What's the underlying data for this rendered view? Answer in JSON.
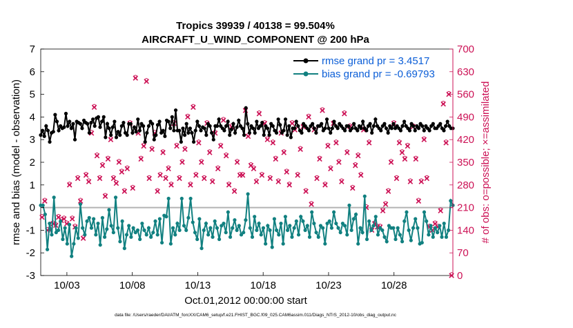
{
  "chart_data": {
    "type": "line",
    "title": "Tropics 39939 / 40138 = 99.504%",
    "subtitle": "AIRCRAFT_U_WIND_COMPONENT @ 200 hPa",
    "xlabel": "Oct.01,2012 00:00:00 start",
    "ylabel_left": "rmse and bias (model - observation)",
    "ylabel_right": "# of obs: o=possible; ×=assimilated",
    "ylim_left": [
      -3,
      7
    ],
    "ylim_right": [
      0,
      700
    ],
    "yticks_left": [
      "-3",
      "-2",
      "-1",
      "0",
      "1",
      "2",
      "3",
      "4",
      "5",
      "6",
      "7"
    ],
    "yticks_right": [
      "0",
      "70",
      "140",
      "210",
      "280",
      "350",
      "420",
      "490",
      "560",
      "630",
      "700"
    ],
    "x_range_days": [
      1,
      32.5
    ],
    "xticks": [
      {
        "day": 3,
        "label": "10/03"
      },
      {
        "day": 8,
        "label": "10/08"
      },
      {
        "day": 13,
        "label": "10/13"
      },
      {
        "day": 18,
        "label": "10/18"
      },
      {
        "day": 23,
        "label": "10/23"
      },
      {
        "day": 28,
        "label": "10/28"
      }
    ],
    "legend": [
      {
        "label": "rmse grand pr = 3.4517",
        "color": "#000000"
      },
      {
        "label": "bias grand pr = -0.69793",
        "color": "#118080"
      }
    ],
    "footnote": "data file: /Users/raeder/DAI/ATM_forcXX/CAM6_setup/f.e21.FHIST_BGC.f09_025.CAM6assim.011/Diags_NTrS_2012-10/obs_diag_output.nc",
    "series": [
      {
        "name": "rmse",
        "color": "#000000",
        "values": [
          3.2,
          3.4,
          3.15,
          3.6,
          3.4,
          2.9,
          3.3,
          3.35,
          4.1,
          3.8,
          3.4,
          3.6,
          3.5,
          3.55,
          4.15,
          3.6,
          3.8,
          3.5,
          3.7,
          3.0,
          3.8,
          3.75,
          3.7,
          3.5,
          3.85,
          3.75,
          3.7,
          3.3,
          3.75,
          3.9,
          3.6,
          3.95,
          4.0,
          3.55,
          3.8,
          4.0,
          3.1,
          3.7,
          3.5,
          3.2,
          3.55,
          3.8,
          3.1,
          3.35,
          3.2,
          3.6,
          3.75,
          3.3,
          3.2,
          3.7,
          3.7,
          3.3,
          3.55,
          3.35,
          3.9,
          3.4,
          3.7,
          3.6,
          2.9,
          3.3,
          3.6,
          3.8,
          3.7,
          3.0,
          3.2,
          3.65,
          3.8,
          3.3,
          3.4,
          3.15,
          3.85,
          3.8,
          3.5,
          4.0,
          3.4,
          4.3,
          3.4,
          3.4,
          2.9,
          3.5,
          3.2,
          3.7,
          3.3,
          3.5,
          3.3,
          2.9,
          3.4,
          3.8,
          3.6,
          3.4,
          3.55,
          3.5,
          3.2,
          3.7,
          3.6,
          3.3,
          3.0,
          3.6,
          3.6,
          3.9,
          3.6,
          3.5,
          3.4,
          3.6,
          3.8,
          3.2,
          3.45,
          3.7,
          3.3,
          3.55,
          3.85,
          3.6,
          3.5,
          3.2,
          4.4,
          3.7,
          3.3,
          3.6,
          3.5,
          3.3,
          3.8,
          3.5,
          3.6,
          3.75,
          3.2,
          3.6,
          3.5,
          3.2,
          3.7,
          3.6,
          3.4,
          3.3,
          3.9,
          3.65,
          3.3,
          3.4,
          3.9,
          3.2,
          3.6,
          3.1,
          3.5,
          3.5,
          3.8,
          3.6,
          3.4,
          3.3,
          3.7,
          3.6,
          3.5,
          3.4,
          3.6,
          3.7,
          3.5,
          3.3,
          3.6,
          3.6,
          3.7,
          3.4,
          3.5,
          3.9,
          3.5,
          3.3,
          3.5,
          3.8,
          3.6,
          3.5,
          3.7,
          3.6,
          3.5,
          3.4,
          3.6,
          3.6,
          3.4,
          3.5,
          3.7,
          3.5,
          3.4,
          3.6,
          3.5,
          3.8,
          3.5,
          3.4,
          3.6,
          3.7,
          3.3,
          3.6,
          3.9,
          3.6,
          3.5,
          3.4,
          3.6,
          3.7,
          3.5,
          3.3,
          3.6,
          3.5,
          3.7,
          3.5,
          3.6,
          3.5,
          3.4,
          3.6,
          3.8,
          3.6,
          3.5,
          3.4,
          3.7,
          3.6,
          3.4,
          3.6,
          3.5,
          3.7,
          3.6,
          3.4,
          3.6,
          3.5,
          3.4,
          3.6,
          3.7,
          3.5,
          3.5,
          3.6,
          3.7,
          3.5,
          3.4,
          3.6,
          3.8,
          3.6,
          3.5,
          3.5
        ]
      },
      {
        "name": "bias",
        "color": "#118080",
        "values": [
          0.1,
          0.1,
          -0.3,
          -1.85,
          -0.7,
          -1.2,
          0.45,
          -1.1,
          -1.0,
          -0.6,
          -1.4,
          -0.9,
          -1.6,
          -0.75,
          -2.15,
          -1.6,
          -0.9,
          -1.35,
          0.15,
          -0.9,
          -1.2,
          -0.6,
          -0.45,
          -0.9,
          -0.5,
          -1.2,
          -0.7,
          -1.65,
          -0.45,
          -1.3,
          -0.95,
          -0.1,
          -0.8,
          -1.1,
          0.45,
          -0.9,
          -1.5,
          -0.6,
          -1.8,
          -1.2,
          -0.8,
          -1.3,
          -0.9,
          -1.1,
          -1.0,
          -1.4,
          -0.7,
          -1.0,
          -1.2,
          -0.9,
          -1.3,
          -1.1,
          -0.6,
          -1.2,
          -0.5,
          -1.55,
          -0.35,
          -0.4,
          0.4,
          -1.6,
          -0.9,
          -1.2,
          -0.7,
          -1.0,
          0.4,
          -0.8,
          -1.0,
          -0.45,
          0.4,
          -0.65,
          -1.1,
          -1.4,
          -0.5,
          -1.8,
          -1.0,
          -0.7,
          -1.2,
          -0.9,
          -1.3,
          -0.6,
          -0.9,
          -1.4,
          -0.8,
          -0.7,
          -1.1,
          -0.2,
          -1.3,
          -0.9,
          -0.55,
          -1.0,
          -0.8,
          -1.2,
          -1.1,
          -0.55,
          0.6,
          -0.9,
          -1.3,
          -0.4,
          -1.0,
          -0.7,
          -1.2,
          -0.9,
          -1.6,
          -0.8,
          -1.0,
          -1.75,
          -0.5,
          -1.0,
          -1.2,
          -0.7,
          -1.6,
          -0.4,
          -1.0,
          -0.8,
          -1.3,
          -0.9,
          -0.6,
          -1.2,
          -0.4,
          -0.6,
          -1.0,
          -0.8,
          -1.3,
          -0.2,
          -0.7,
          -1.1,
          -1.3,
          -0.8,
          -0.9,
          -1.6,
          -0.7,
          -0.6,
          -0.9,
          -0.2,
          -0.7,
          -0.9,
          -1.1,
          -0.7,
          -0.8,
          -1.2,
          0.1,
          -1.0,
          -0.5,
          -0.3,
          -1.6,
          -0.9,
          -1.1,
          0.5,
          -1.4,
          -0.6,
          -1.0,
          -0.8,
          -0.4,
          -1.2,
          -0.9,
          -1.0,
          -1.3,
          -1.5,
          -0.8,
          -0.9,
          -0.9,
          -1.4,
          -0.9,
          -1.2,
          -1.5,
          -0.6,
          -0.2,
          -1.0,
          -1.45,
          -0.9,
          -0.5,
          -0.9,
          -1.6,
          -1.55,
          -0.2,
          -0.6,
          -1.2,
          -0.8,
          -1.3,
          -0.9,
          -1.1,
          -0.8,
          -1.3,
          -0.7,
          -1.3,
          -1.0,
          0.3,
          0.1
        ]
      },
      {
        "name": "obs assimilated",
        "axis": "right",
        "color": "#cc1155",
        "values": [
          180,
          230,
          140,
          140,
          160,
          155,
          180,
          170,
          175,
          160,
          280,
          175,
          150,
          300,
          230,
          115,
          310,
          290,
          440,
          520,
          370,
          300,
          340,
          245,
          360,
          420,
          300,
          285,
          350,
          320,
          260,
          330,
          470,
          270,
          610,
          440,
          360,
          400,
          600,
          300,
          390,
          440,
          260,
          310,
          380,
          300,
          330,
          280,
          470,
          400,
          300,
          350,
          390,
          490,
          280,
          520,
          310,
          410,
          350,
          300,
          470,
          380,
          290,
          440,
          330,
          400,
          480,
          370,
          280,
          460,
          260,
          350,
          310,
          310,
          510,
          430,
          340,
          330,
          290,
          500,
          310,
          470,
          420,
          300,
          410,
          360,
          290,
          440,
          380,
          320,
          280,
          470,
          450,
          310,
          390,
          460,
          260,
          490,
          220,
          450,
          300,
          360,
          510,
          280,
          400,
          330,
          470,
          410,
          350,
          290,
          500,
          380,
          460,
          270,
          340,
          370,
          310,
          450,
          210,
          410,
          140,
          160,
          150,
          150,
          200,
          220,
          260,
          350,
          470,
          300,
          410,
          380,
          360,
          400,
          290,
          460,
          360,
          230,
          290,
          420,
          300,
          150,
          140,
          160,
          150,
          200,
          530,
          410,
          560,
          0
        ]
      }
    ]
  }
}
